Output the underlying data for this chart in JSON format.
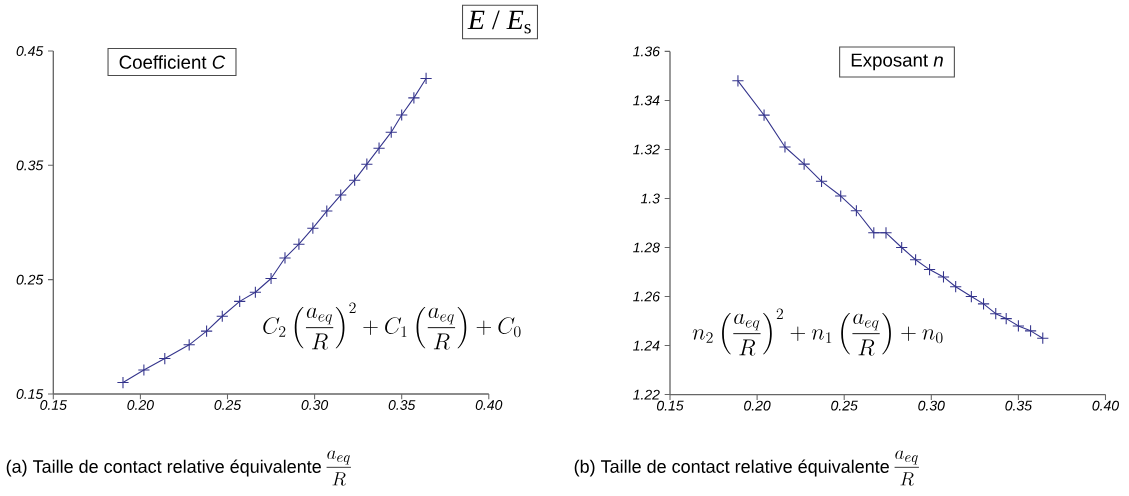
{
  "chart_data": [
    {
      "type": "line",
      "title": "*E* / *E*$_{s}$",
      "xlabel": "(a)  Taille de contact relative équivalente",
      "annotations": [
        "Coefficient *C*",
        "C_{2}\\left(\\frac{a_{eq}}{R}\\right)^{2}+C_{1}\\left(\\frac{a_{eq}}{R}\\right)+C_{0}",
        "\\frac{a_{eq}}{R}"
      ],
      "x": [
        0.19,
        0.202,
        0.214,
        0.228,
        0.238,
        0.247,
        0.257,
        0.266,
        0.275,
        0.283,
        0.291,
        0.299,
        0.307,
        0.315,
        0.323,
        0.33,
        0.337,
        0.344,
        0.35,
        0.357,
        0.364
      ],
      "series": [
        {
          "color": "#34348c",
          "values": [
            0.16,
            0.171,
            0.181,
            0.193,
            0.205,
            0.218,
            0.231,
            0.239,
            0.251,
            0.269,
            0.281,
            0.295,
            0.31,
            0.324,
            0.337,
            0.351,
            0.365,
            0.379,
            0.394,
            0.409,
            0.426
          ]
        }
      ],
      "xlim": [
        0.15,
        0.4
      ],
      "ylim": [
        0.15,
        0.45
      ],
      "xticks": [
        0.15,
        {
          "value": 0.2,
          "label": "0.20"
        },
        0.25,
        {
          "value": 0.3,
          "label": "0.30"
        },
        0.35,
        {
          "value": 0.4,
          "label": "0.40"
        }
      ],
      "yticks": [
        0.15,
        0.25,
        0.35,
        0.45
      ],
      "marker": "cross",
      "line_style": "solid"
    },
    {
      "type": "line",
      "xlabel": "(b)  Taille de contact relative équivalente",
      "annotations": [
        "Exposant *n*",
        "n_{2}\\left(\\frac{a_{eq}}{R}\\right)^{2}+n_{1}\\left(\\frac{a_{eq}}{R}\\right)+n_{0}",
        "\\frac{a_{eq}}{R}"
      ],
      "x": [
        0.189,
        0.204,
        0.216,
        0.227,
        0.237,
        0.248,
        0.257,
        0.267,
        0.274,
        0.283,
        0.291,
        0.299,
        0.307,
        0.314,
        0.323,
        0.33,
        0.337,
        0.343,
        0.35,
        0.357,
        0.364
      ],
      "series": [
        {
          "color": "#34348c",
          "values": [
            1.348,
            1.334,
            1.321,
            1.314,
            1.307,
            1.301,
            1.295,
            1.286,
            1.286,
            1.28,
            1.275,
            1.271,
            1.268,
            1.264,
            1.26,
            1.257,
            1.253,
            1.251,
            1.248,
            1.246,
            1.243
          ]
        }
      ],
      "xlim": [
        0.15,
        0.4
      ],
      "ylim": [
        1.22,
        1.36
      ],
      "xticks": [
        0.15,
        {
          "value": 0.2,
          "label": "0.20"
        },
        0.25,
        {
          "value": 0.3,
          "label": "0.30"
        },
        0.35,
        {
          "value": 0.4,
          "label": "0.40"
        }
      ],
      "yticks": [
        1.22,
        1.24,
        1.26,
        1.28,
        1.3,
        1.32,
        1.34,
        1.36
      ],
      "marker": "cross",
      "line_style": "solid"
    }
  ]
}
